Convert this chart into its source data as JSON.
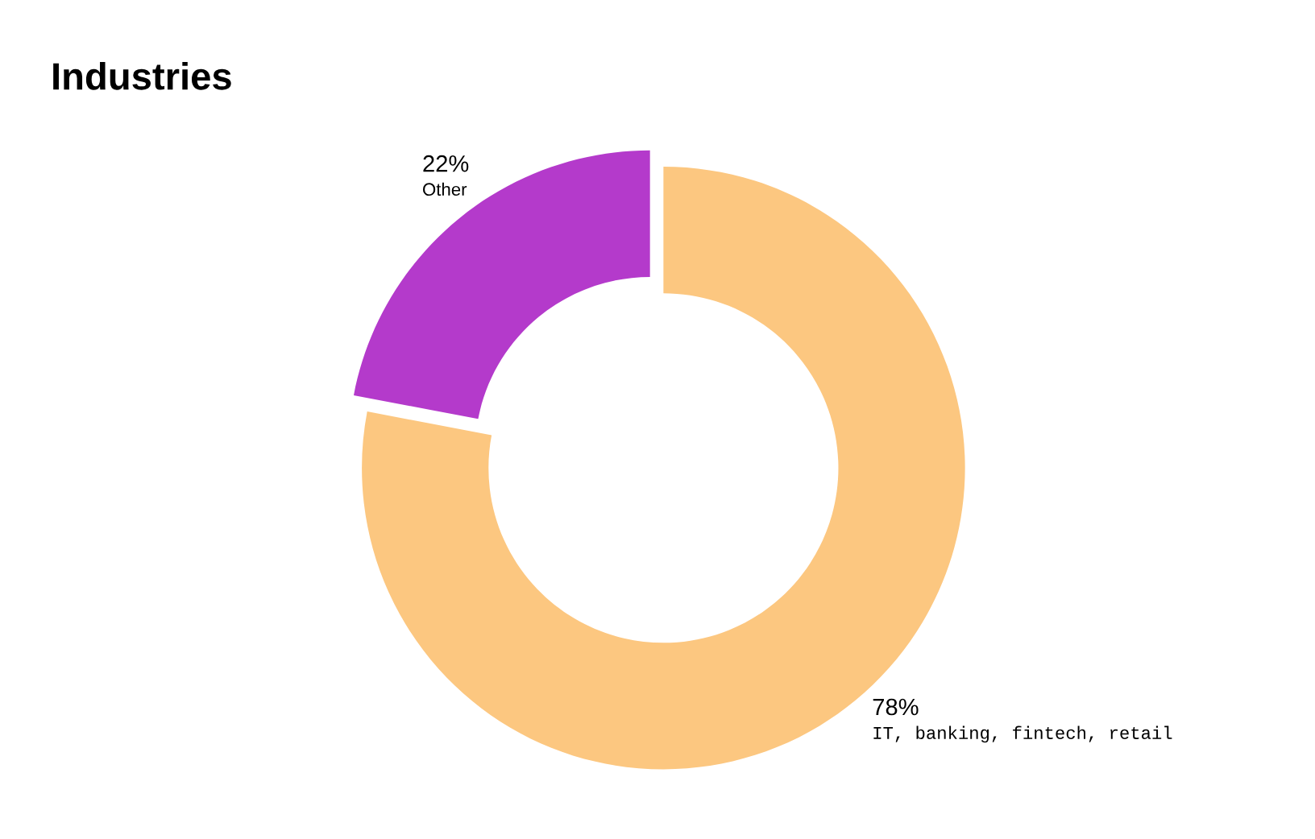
{
  "chart_data": {
    "type": "donut",
    "title": "Industries",
    "categories": [
      "IT, banking, fintech, retail",
      "Other"
    ],
    "values": [
      78,
      22
    ],
    "colors": [
      "#fcc780",
      "#b43acb"
    ],
    "value_labels": [
      "78%",
      "22%"
    ],
    "legend": false
  }
}
